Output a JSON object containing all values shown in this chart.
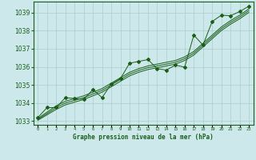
{
  "title": "Graphe pression niveau de la mer (hPa)",
  "background_color": "#cce8ea",
  "grid_color": "#aacccc",
  "line_color": "#1a5e1a",
  "text_color": "#1a5e1a",
  "xlim": [
    -0.5,
    23.5
  ],
  "ylim": [
    1032.8,
    1039.6
  ],
  "yticks": [
    1033,
    1034,
    1035,
    1036,
    1037,
    1038,
    1039
  ],
  "xticks": [
    0,
    1,
    2,
    3,
    4,
    5,
    6,
    7,
    8,
    9,
    10,
    11,
    12,
    13,
    14,
    15,
    16,
    17,
    18,
    19,
    20,
    21,
    22,
    23
  ],
  "hours": [
    0,
    1,
    2,
    3,
    4,
    5,
    6,
    7,
    8,
    9,
    10,
    11,
    12,
    13,
    14,
    15,
    16,
    17,
    18,
    19,
    20,
    21,
    22,
    23
  ],
  "pressure_main": [
    1033.2,
    1033.75,
    1033.75,
    1034.3,
    1034.25,
    1034.2,
    1034.75,
    1034.3,
    1035.05,
    1035.35,
    1036.2,
    1036.3,
    1036.4,
    1035.9,
    1035.82,
    1036.1,
    1035.98,
    1037.75,
    1037.2,
    1038.5,
    1038.85,
    1038.82,
    1039.05,
    1039.35
  ],
  "pressure_smooth1": [
    1033.15,
    1033.5,
    1033.85,
    1034.1,
    1034.25,
    1034.4,
    1034.6,
    1034.8,
    1035.1,
    1035.4,
    1035.7,
    1035.9,
    1036.05,
    1036.15,
    1036.25,
    1036.35,
    1036.55,
    1036.85,
    1037.3,
    1037.75,
    1038.2,
    1038.55,
    1038.85,
    1039.2
  ],
  "pressure_smooth2": [
    1033.05,
    1033.35,
    1033.65,
    1033.9,
    1034.05,
    1034.2,
    1034.4,
    1034.6,
    1034.9,
    1035.2,
    1035.5,
    1035.7,
    1035.85,
    1035.95,
    1036.05,
    1036.15,
    1036.35,
    1036.65,
    1037.1,
    1037.55,
    1038.0,
    1038.35,
    1038.65,
    1039.0
  ],
  "pressure_smooth3": [
    1033.1,
    1033.42,
    1033.75,
    1034.0,
    1034.15,
    1034.3,
    1034.5,
    1034.7,
    1035.0,
    1035.3,
    1035.6,
    1035.8,
    1035.95,
    1036.05,
    1036.15,
    1036.25,
    1036.45,
    1036.75,
    1037.2,
    1037.65,
    1038.1,
    1038.45,
    1038.75,
    1039.1
  ]
}
